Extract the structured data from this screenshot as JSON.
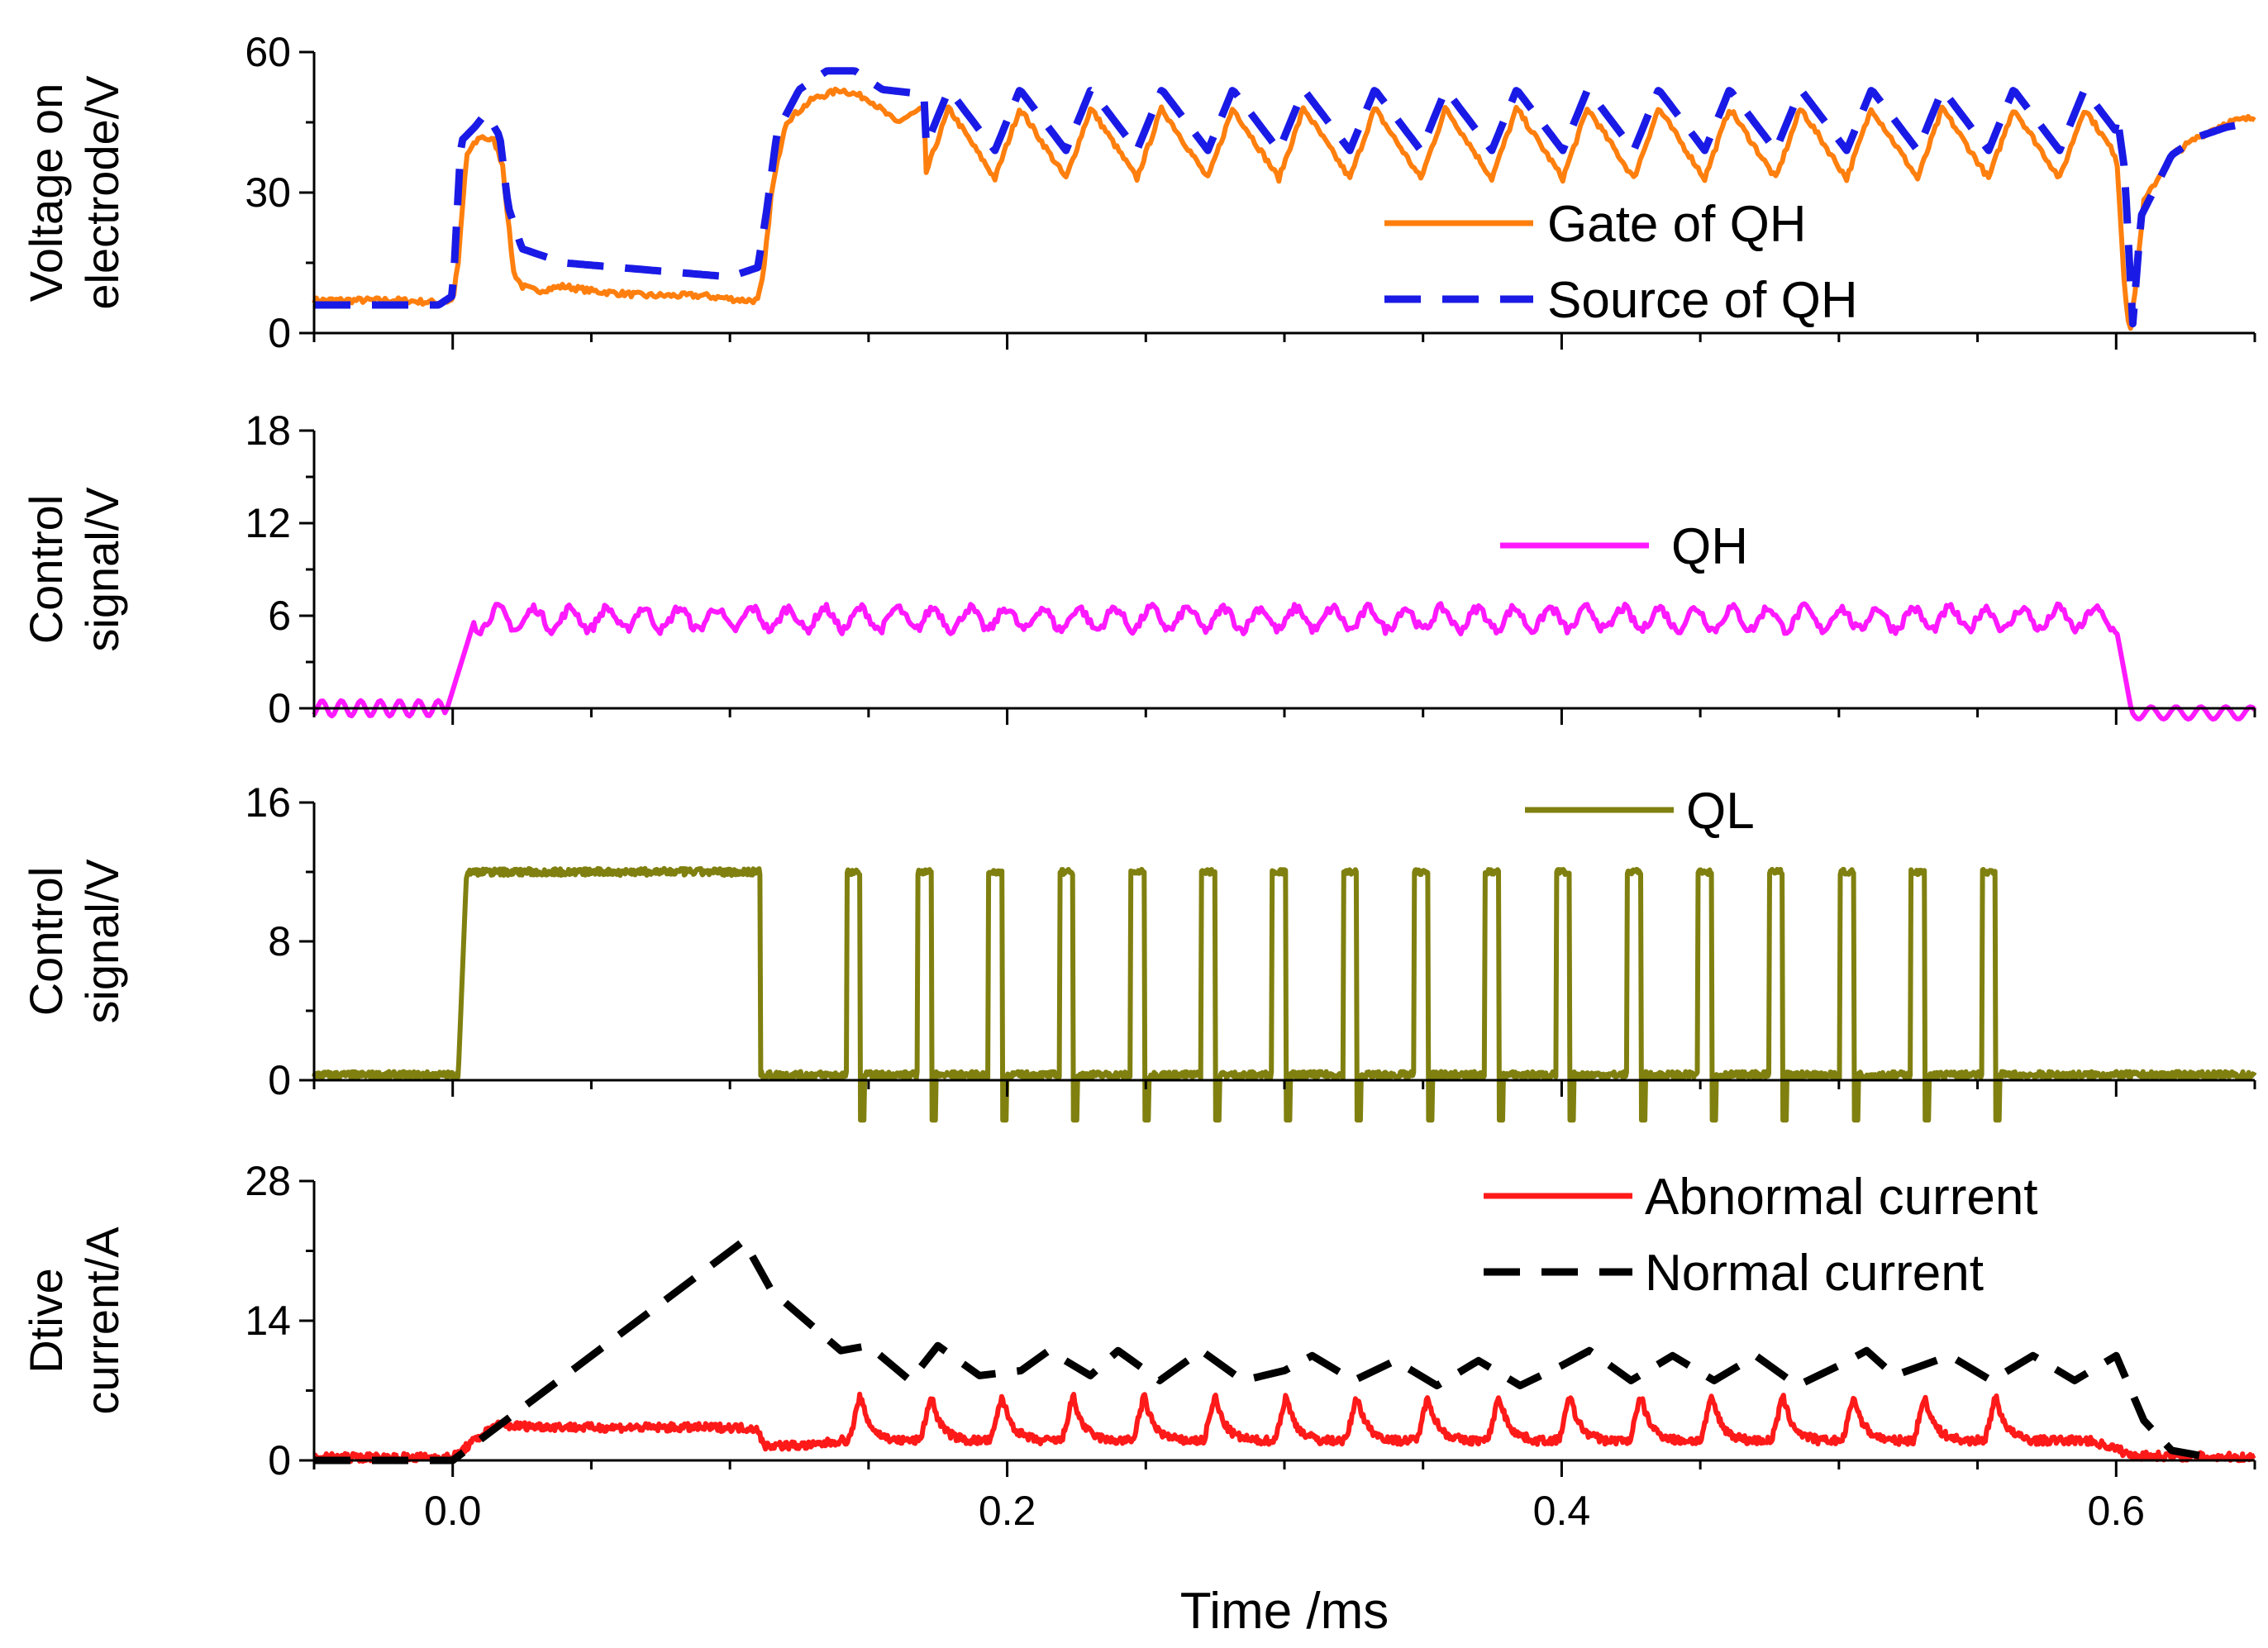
{
  "chart_data": {
    "type": "line",
    "x_axis": {
      "label": "Time /ms",
      "range": [
        -0.05,
        0.65
      ],
      "ticks": [
        0.0,
        0.2,
        0.4,
        0.6
      ],
      "tick_labels": [
        "0.0",
        "0.2",
        "0.4",
        "0.6"
      ]
    },
    "panels": [
      {
        "id": "voltage",
        "ylabel_lines": [
          "Voltage on",
          "electrode/V"
        ],
        "ylim": [
          0,
          60
        ],
        "yticks": [
          0,
          30,
          60
        ],
        "ytick_labels": [
          "0",
          "30",
          "60"
        ],
        "series": [
          {
            "name": "Gate of QH",
            "color": "#ff7f0e",
            "style": "solid",
            "points": [
              [
                -0.05,
                7
              ],
              [
                -0.02,
                7
              ],
              [
                -0.005,
                6.5
              ],
              [
                0.0,
                7
              ],
              [
                0.002,
                15
              ],
              [
                0.005,
                38
              ],
              [
                0.01,
                42
              ],
              [
                0.015,
                41
              ],
              [
                0.018,
                36
              ],
              [
                0.02,
                24
              ],
              [
                0.022,
                13
              ],
              [
                0.025,
                10
              ],
              [
                0.03,
                9
              ],
              [
                0.04,
                10
              ],
              [
                0.05,
                9
              ],
              [
                0.07,
                8
              ],
              [
                0.09,
                8
              ],
              [
                0.105,
                7
              ],
              [
                0.11,
                7
              ],
              [
                0.112,
                12
              ],
              [
                0.115,
                30
              ],
              [
                0.12,
                45
              ],
              [
                0.13,
                50
              ],
              [
                0.14,
                52
              ],
              [
                0.15,
                50
              ],
              [
                0.16,
                45
              ],
              [
                0.17,
                48
              ]
            ],
            "wave": {
              "from": 0.17,
              "to": 0.6,
              "period": 0.0256,
              "high": 48,
              "low": 33
            },
            "tail": [
              [
                0.6,
                40
              ],
              [
                0.603,
                10
              ],
              [
                0.605,
                0
              ],
              [
                0.607,
                10
              ],
              [
                0.61,
                28
              ],
              [
                0.62,
                38
              ],
              [
                0.63,
                42
              ],
              [
                0.64,
                45
              ],
              [
                0.65,
                46
              ]
            ]
          },
          {
            "name": "Source of QH",
            "color": "#1a1ae6",
            "style": "dash",
            "points": [
              [
                -0.05,
                6
              ],
              [
                -0.005,
                6
              ],
              [
                0.0,
                8
              ],
              [
                0.003,
                41
              ],
              [
                0.008,
                44
              ],
              [
                0.012,
                47
              ],
              [
                0.017,
                42
              ],
              [
                0.02,
                27
              ],
              [
                0.025,
                18
              ],
              [
                0.04,
                15
              ],
              [
                0.06,
                14
              ],
              [
                0.08,
                13
              ],
              [
                0.1,
                12
              ],
              [
                0.11,
                14
              ],
              [
                0.113,
                25
              ],
              [
                0.117,
                43
              ],
              [
                0.125,
                52
              ],
              [
                0.135,
                56
              ],
              [
                0.145,
                56
              ],
              [
                0.155,
                52
              ],
              [
                0.17,
                51
              ]
            ],
            "wave": {
              "from": 0.17,
              "to": 0.6,
              "period": 0.0256,
              "high": 52,
              "low": 39
            },
            "tail": [
              [
                0.6,
                48
              ],
              [
                0.603,
                35
              ],
              [
                0.606,
                2
              ],
              [
                0.609,
                25
              ],
              [
                0.62,
                38
              ],
              [
                0.63,
                42
              ],
              [
                0.64,
                44
              ],
              [
                0.65,
                45
              ]
            ]
          }
        ],
        "legend": {
          "entries": [
            "Gate of QH",
            "Source of QH"
          ],
          "position": "lower-right"
        }
      },
      {
        "id": "control-qh",
        "ylabel_lines": [
          "Control",
          "signal/V"
        ],
        "ylim": [
          0,
          18
        ],
        "yticks": [
          0,
          6,
          12,
          18
        ],
        "ytick_labels": [
          "0",
          "6",
          "12",
          "18"
        ],
        "series": [
          {
            "name": "QH",
            "color": "#ff19ff",
            "style": "solid",
            "off_level": 0,
            "on_level": 5.8,
            "on_from": 0.002,
            "on_to": 0.6,
            "ripple": 0.7
          }
        ],
        "legend": {
          "entries": [
            "QH"
          ],
          "position": "upper-right"
        }
      },
      {
        "id": "control-ql",
        "ylabel_lines": [
          "Control",
          "signal/V"
        ],
        "ylim": [
          0,
          16
        ],
        "yticks": [
          0,
          8,
          16
        ],
        "ytick_labels": [
          "0",
          "8",
          "16"
        ],
        "series": [
          {
            "name": "QL",
            "color": "#808010",
            "style": "solid",
            "off_level": 0.3,
            "on_level": 12,
            "first_pulse": [
              0.002,
              0.111
            ],
            "pulses_start": 0.142,
            "pulse_period": 0.0256,
            "pulse_width": 0.005,
            "pulse_count": 17,
            "undershoot": -2.3
          }
        ],
        "legend": {
          "entries": [
            "QL"
          ],
          "position": "top-center"
        }
      },
      {
        "id": "drive-current",
        "ylabel_lines": [
          "Dtive",
          "current/A"
        ],
        "ylim": [
          0,
          28
        ],
        "yticks": [
          0,
          14,
          28
        ],
        "ytick_labels": [
          "0",
          "14",
          "28"
        ],
        "series": [
          {
            "name": "Abnormal current",
            "color": "#ff1a1a",
            "style": "solid",
            "points": [
              [
                -0.05,
                0.3
              ],
              [
                0.0,
                0.3
              ],
              [
                0.008,
                2
              ],
              [
                0.015,
                3.5
              ],
              [
                0.05,
                3.3
              ],
              [
                0.1,
                3.3
              ],
              [
                0.11,
                3.2
              ],
              [
                0.112,
                1.5
              ],
              [
                0.13,
                1.5
              ],
              [
                0.14,
                2
              ]
            ],
            "spikes": {
              "start": 0.147,
              "period": 0.0256,
              "count": 17,
              "peak": 6.5,
              "base": 2
            },
            "tail": [
              [
                0.59,
                2
              ],
              [
                0.6,
                1.2
              ],
              [
                0.605,
                0.5
              ],
              [
                0.65,
                0.3
              ]
            ]
          },
          {
            "name": "Normal current",
            "color": "#000000",
            "style": "dash",
            "points": [
              [
                -0.05,
                0
              ],
              [
                -0.02,
                0
              ],
              [
                0.0,
                0
              ],
              [
                0.105,
                22
              ],
              [
                0.115,
                17
              ],
              [
                0.14,
                11
              ],
              [
                0.15,
                11.5
              ],
              [
                0.165,
                8
              ],
              [
                0.175,
                11.5
              ],
              [
                0.19,
                8.5
              ],
              [
                0.205,
                9
              ],
              [
                0.215,
                11
              ],
              [
                0.23,
                8.5
              ],
              [
                0.24,
                11
              ],
              [
                0.255,
                8
              ],
              [
                0.27,
                11
              ],
              [
                0.285,
                8
              ],
              [
                0.3,
                9
              ],
              [
                0.31,
                10.5
              ],
              [
                0.325,
                8
              ],
              [
                0.34,
                10
              ],
              [
                0.355,
                7.5
              ],
              [
                0.37,
                10
              ],
              [
                0.385,
                7.5
              ],
              [
                0.4,
                9.5
              ],
              [
                0.41,
                11
              ],
              [
                0.425,
                8
              ],
              [
                0.44,
                10.5
              ],
              [
                0.455,
                8
              ],
              [
                0.47,
                10.5
              ],
              [
                0.485,
                7.5
              ],
              [
                0.5,
                9.5
              ],
              [
                0.51,
                11
              ],
              [
                0.52,
                8.5
              ],
              [
                0.54,
                10.5
              ],
              [
                0.555,
                8
              ],
              [
                0.57,
                10.5
              ],
              [
                0.585,
                8
              ],
              [
                0.6,
                10.5
              ],
              [
                0.61,
                4
              ],
              [
                0.62,
                1
              ],
              [
                0.63,
                0.5
              ]
            ]
          }
        ],
        "legend": {
          "entries": [
            "Abnormal current",
            "Normal current"
          ],
          "position": "top-right"
        }
      }
    ]
  }
}
